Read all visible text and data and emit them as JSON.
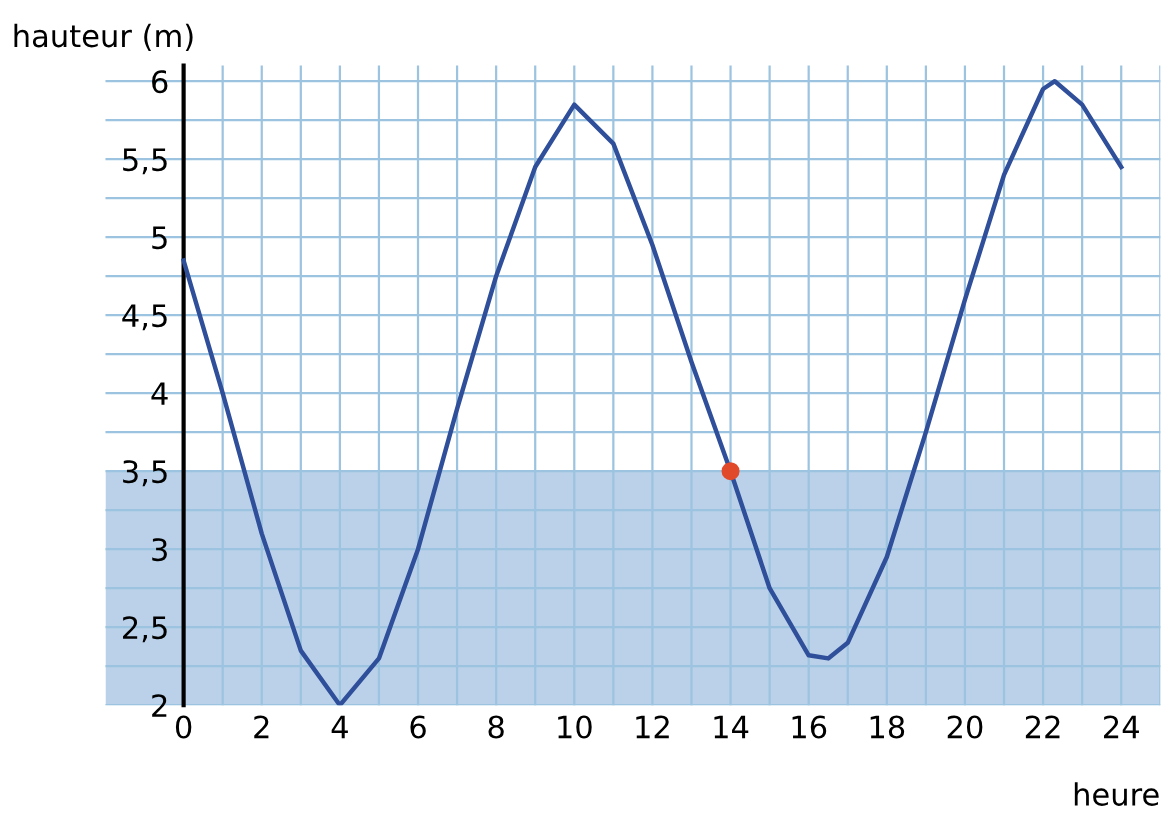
{
  "chart_data": {
    "type": "line",
    "xlabel": "heure",
    "ylabel": "hauteur (m)",
    "xlim": [
      -2,
      25
    ],
    "ylim": [
      2,
      6.1
    ],
    "xticks": [
      0,
      {
        "value": 1,
        "label": null
      },
      2,
      {
        "value": 3,
        "label": null
      },
      4,
      {
        "value": 5,
        "label": null
      },
      6,
      {
        "value": 7,
        "label": null
      },
      8,
      {
        "value": 9,
        "label": null
      },
      10,
      {
        "value": 11,
        "label": null
      },
      12,
      {
        "value": 13,
        "label": null
      },
      14,
      {
        "value": 15,
        "label": null
      },
      16,
      {
        "value": 17,
        "label": null
      },
      18,
      {
        "value": 19,
        "label": null
      },
      20,
      {
        "value": 21,
        "label": null
      },
      22,
      {
        "value": 23,
        "label": null
      },
      24,
      {
        "value": 25,
        "label": null
      }
    ],
    "yticks": [
      2,
      {
        "value": 2.25,
        "label": null
      },
      {
        "value": 2.5,
        "label": "2,5"
      },
      {
        "value": 2.75,
        "label": null
      },
      3,
      {
        "value": 3.25,
        "label": null
      },
      {
        "value": 3.5,
        "label": "3,5"
      },
      {
        "value": 3.75,
        "label": null
      },
      4,
      {
        "value": 4.25,
        "label": null
      },
      {
        "value": 4.5,
        "label": "4,5"
      },
      {
        "value": 4.75,
        "label": null
      },
      5,
      {
        "value": 5.25,
        "label": null
      },
      {
        "value": 5.5,
        "label": "5,5"
      },
      {
        "value": 5.75,
        "label": null
      },
      6
    ],
    "grid": true,
    "marker": "none",
    "line_style": "solid",
    "series": [
      {
        "color": "#2f4f9a",
        "x": [
          0,
          1,
          2,
          3,
          4,
          5,
          6,
          7,
          8,
          9,
          10,
          11,
          12,
          13,
          14,
          15,
          16,
          16.5,
          17,
          18,
          19,
          20,
          21,
          22,
          22.3,
          23,
          24
        ],
        "values": [
          4.85,
          4.0,
          3.1,
          2.35,
          2.0,
          2.3,
          3.0,
          3.9,
          4.75,
          5.45,
          5.85,
          5.6,
          4.95,
          4.2,
          3.5,
          2.75,
          2.32,
          2.3,
          2.4,
          2.95,
          3.75,
          4.6,
          5.4,
          5.95,
          6.0,
          5.85,
          5.45
        ]
      },
      {
        "type": "scatter",
        "color": "#e04a2a",
        "x": [
          14
        ],
        "values": [
          3.5
        ],
        "marker": "circle"
      }
    ],
    "bands": [
      {
        "axis": "y",
        "from": 2,
        "to": 3.5,
        "color": "#a9c6e4"
      }
    ]
  }
}
